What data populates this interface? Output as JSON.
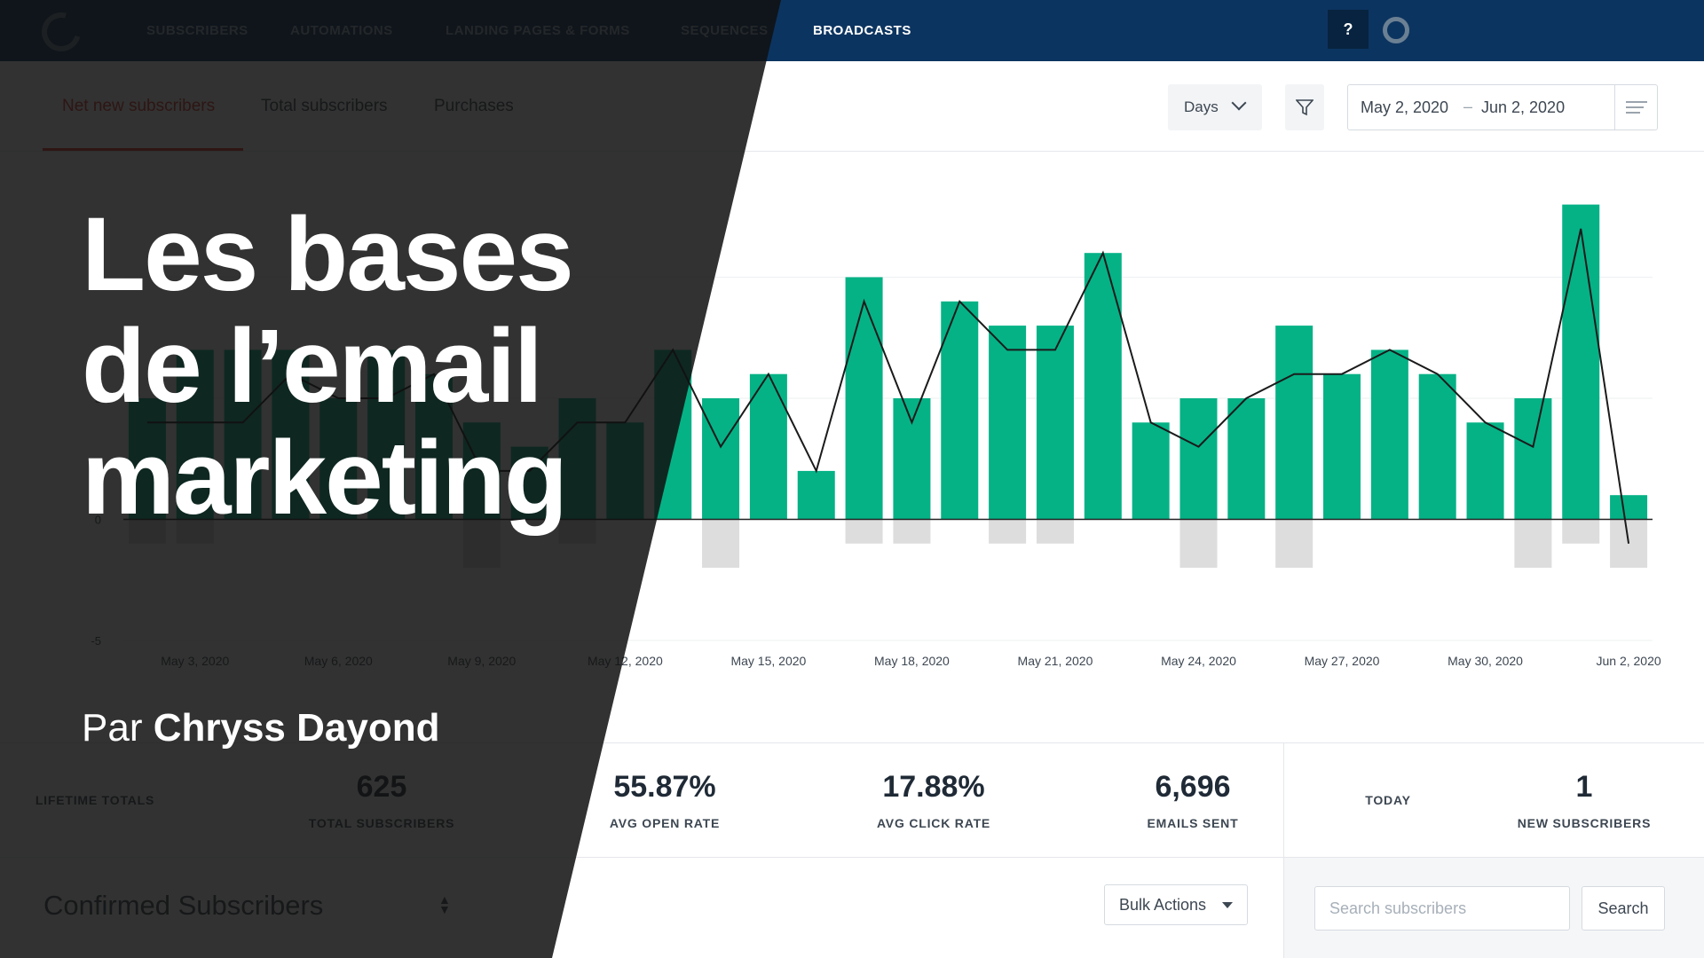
{
  "nav": {
    "items": [
      "SUBSCRIBERS",
      "AUTOMATIONS",
      "LANDING PAGES & FORMS",
      "SEQUENCES",
      "BROADCASTS"
    ],
    "active": "BROADCASTS",
    "help_label": "?",
    "icons": {
      "logo": "convertkit-logo-icon",
      "user": "user-avatar-icon"
    }
  },
  "toolbar": {
    "tabs": [
      "Net new subscribers",
      "Total subscribers",
      "Purchases"
    ],
    "active_tab": "Net new subscribers",
    "interval": "Days",
    "date_start": "May 2, 2020",
    "date_sep": "–",
    "date_end": "Jun 2, 2020"
  },
  "chart_data": {
    "type": "bar",
    "x": [
      "May 2",
      "May 3",
      "May 4",
      "May 5",
      "May 6",
      "May 7",
      "May 8",
      "May 9",
      "May 10",
      "May 11",
      "May 12",
      "May 13",
      "May 14",
      "May 15",
      "May 16",
      "May 17",
      "May 18",
      "May 19",
      "May 20",
      "May 21",
      "May 22",
      "May 23",
      "May 24",
      "May 25",
      "May 26",
      "May 27",
      "May 28",
      "May 29",
      "May 30",
      "May 31",
      "Jun 1",
      "Jun 2"
    ],
    "series": [
      {
        "type": "bar",
        "values": [
          5,
          7,
          7,
          7,
          5,
          7,
          6,
          4,
          3,
          5,
          4,
          7,
          5,
          6,
          2,
          10,
          5,
          9,
          8,
          8,
          11,
          4,
          5,
          5,
          8,
          6,
          7,
          6,
          4,
          5,
          13,
          1
        ],
        "color": "#05b286"
      },
      {
        "type": "bar",
        "values": [
          -1,
          -1,
          0,
          0,
          0,
          0,
          0,
          -2,
          0,
          -1,
          0,
          0,
          -2,
          0,
          0,
          -1,
          -1,
          0,
          -1,
          -1,
          0,
          0,
          -2,
          0,
          -2,
          0,
          0,
          0,
          0,
          -2,
          -1,
          -2
        ],
        "color": "#dddddd"
      },
      {
        "type": "line",
        "values": [
          4,
          4,
          4,
          6,
          5,
          5,
          6,
          2,
          2,
          4,
          4,
          7,
          3,
          6,
          2,
          9,
          4,
          9,
          7,
          7,
          11,
          4,
          3,
          5,
          6,
          6,
          7,
          6,
          4,
          3,
          12,
          -1
        ],
        "color": "#1b1b1b"
      }
    ],
    "ylim": [
      -5,
      15
    ],
    "yticks": [
      -5,
      0,
      5,
      10
    ],
    "xtick_labels": [
      "May 3, 2020",
      "May 6, 2020",
      "May 9, 2020",
      "May 12, 2020",
      "May 15, 2020",
      "May 18, 2020",
      "May 21, 2020",
      "May 24, 2020",
      "May 27, 2020",
      "May 30, 2020",
      "Jun 2, 2020"
    ],
    "grid": true
  },
  "stats": {
    "lifetime_label": "LIFETIME TOTALS",
    "items": [
      {
        "value": "625",
        "label": "TOTAL SUBSCRIBERS"
      },
      {
        "value": "55.87%",
        "label": "AVG OPEN RATE"
      },
      {
        "value": "17.88%",
        "label": "AVG CLICK RATE"
      },
      {
        "value": "6,696",
        "label": "EMAILS SENT"
      }
    ],
    "today_label": "TODAY",
    "today_value": "1",
    "today_sub": "NEW SUBSCRIBERS"
  },
  "list": {
    "title": "Confirmed Subscribers",
    "bulk_actions": "Bulk Actions",
    "search_placeholder": "Search subscribers",
    "search_button": "Search"
  },
  "overlay": {
    "title_lines": [
      "Les bases",
      "de l’email",
      "marketing"
    ],
    "by_prefix": "Par",
    "author": "Chryss Dayond"
  },
  "colors": {
    "nav_bg": "#0c3460",
    "accent": "#d9382b",
    "bar": "#05b286",
    "negative_bar": "#dddddd",
    "overlay": "#101010"
  }
}
